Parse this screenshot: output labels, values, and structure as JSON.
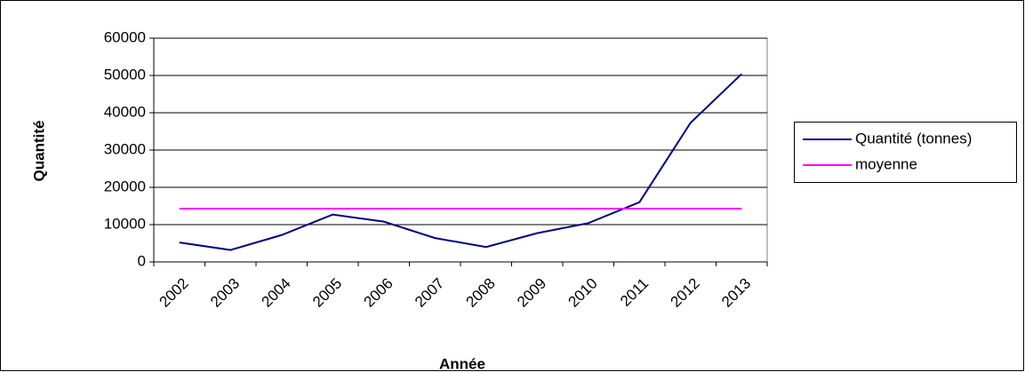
{
  "chart_data": {
    "type": "line",
    "x_label": "Année",
    "y_label": "Quantité",
    "categories": [
      "2002",
      "2003",
      "2004",
      "2005",
      "2006",
      "2007",
      "2008",
      "2009",
      "2010",
      "2011",
      "2012",
      "2013"
    ],
    "series": [
      {
        "name": "Quantité (tonnes)",
        "color": "#000080",
        "values": [
          5200,
          3200,
          7200,
          12700,
          10800,
          6400,
          4000,
          7700,
          10400,
          16000,
          37300,
          50400
        ]
      },
      {
        "name": "moyenne",
        "color": "#ff00ff",
        "values": [
          14300,
          14300,
          14300,
          14300,
          14300,
          14300,
          14300,
          14300,
          14300,
          14300,
          14300,
          14300
        ]
      }
    ],
    "ylim": [
      0,
      60000
    ],
    "yticks": [
      0,
      10000,
      20000,
      30000,
      40000,
      50000,
      60000
    ],
    "grid": true,
    "legend": "right"
  }
}
